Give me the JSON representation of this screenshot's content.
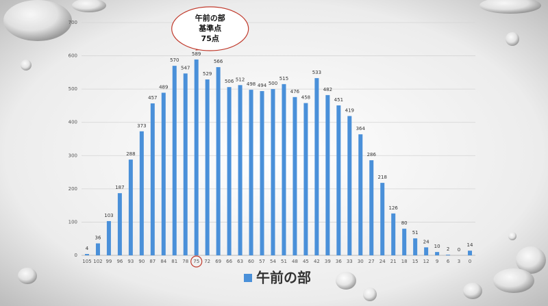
{
  "chart_data": {
    "type": "bar",
    "categories": [
      "105",
      "102",
      "99",
      "96",
      "93",
      "90",
      "87",
      "84",
      "81",
      "78",
      "75",
      "72",
      "69",
      "66",
      "63",
      "60",
      "57",
      "54",
      "51",
      "48",
      "45",
      "42",
      "39",
      "36",
      "33",
      "30",
      "27",
      "24",
      "21",
      "18",
      "15",
      "12",
      "9",
      "6",
      "3",
      "0"
    ],
    "series": [
      {
        "name": "午前の部",
        "color": "#4a90d9",
        "values": [
          4,
          36,
          103,
          187,
          288,
          373,
          457,
          489,
          570,
          547,
          589,
          529,
          566,
          506,
          512,
          498,
          494,
          500,
          515,
          476,
          458,
          533,
          482,
          451,
          419,
          364,
          286,
          218,
          126,
          80,
          51,
          24,
          10,
          2,
          0,
          14
        ]
      }
    ],
    "ylim": [
      0,
      700
    ],
    "yticks": [
      0,
      100,
      200,
      300,
      400,
      500,
      600,
      700
    ],
    "grid": true,
    "annotation": [
      "午前の部",
      "基準点",
      "75点"
    ],
    "legend": "bottom"
  }
}
